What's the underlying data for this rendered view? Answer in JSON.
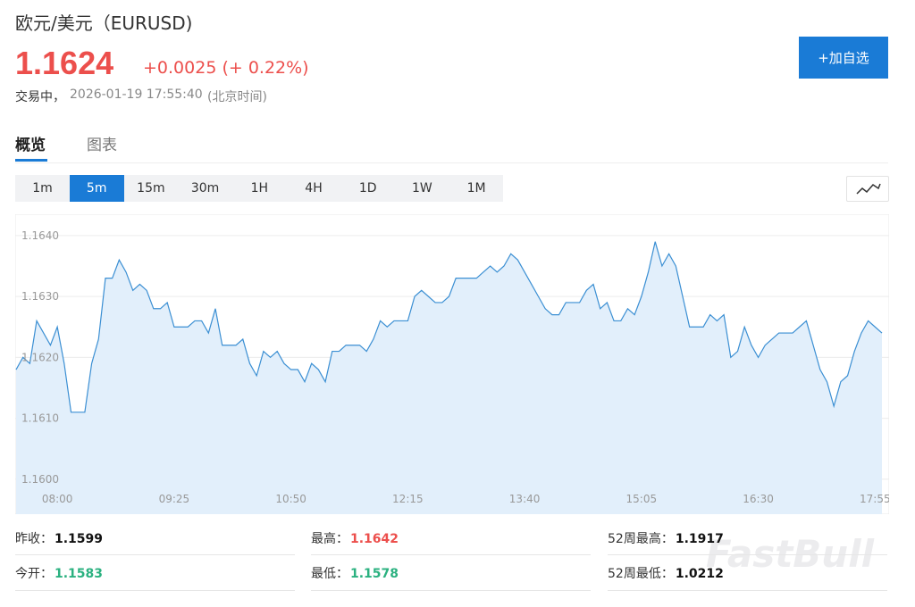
{
  "header": {
    "title": "欧元/美元（EURUSD)",
    "price": "1.1624",
    "change": "+0.0025 (+ 0.22%)",
    "status": "交易中，",
    "time": "2026-01-19 17:55:40",
    "timezone": "(北京时间)"
  },
  "button": "+加自选",
  "tabs": {
    "items": [
      "概览",
      "图表"
    ],
    "active": 0
  },
  "intervals": {
    "items": [
      "1m",
      "5m",
      "15m",
      "30m",
      "1H",
      "4H",
      "1D",
      "1W",
      "1M"
    ],
    "active": 1
  },
  "chart_data": {
    "type": "area",
    "color": "#3b8fd3",
    "fill": "#e2effb",
    "grid": true,
    "categories": [
      null,
      null,
      null,
      null,
      null,
      null,
      "08:00",
      null,
      null,
      null,
      null,
      null,
      null,
      null,
      null,
      null,
      null,
      null,
      null,
      null,
      null,
      null,
      null,
      "09:25",
      null,
      null,
      null,
      null,
      null,
      null,
      null,
      null,
      null,
      null,
      null,
      null,
      null,
      null,
      null,
      null,
      "10:50",
      null,
      null,
      null,
      null,
      null,
      null,
      null,
      null,
      null,
      null,
      null,
      null,
      null,
      null,
      null,
      null,
      "12:15",
      null,
      null,
      null,
      null,
      null,
      null,
      null,
      null,
      null,
      null,
      null,
      null,
      null,
      null,
      null,
      null,
      "13:40",
      null,
      null,
      null,
      null,
      null,
      null,
      null,
      null,
      null,
      null,
      null,
      null,
      null,
      null,
      null,
      null,
      "15:05",
      null,
      null,
      null,
      null,
      null,
      null,
      null,
      null,
      null,
      null,
      null,
      null,
      null,
      null,
      null,
      null,
      "16:30",
      null,
      null,
      null,
      null,
      null,
      null,
      null,
      null,
      null,
      null,
      null,
      null,
      null,
      null,
      null,
      null,
      "17:55",
      null
    ],
    "values": [
      1.1618,
      1.162,
      1.1619,
      1.1626,
      1.1624,
      1.1622,
      1.1625,
      1.1619,
      1.1611,
      1.1611,
      1.1611,
      1.1619,
      1.1623,
      1.1633,
      1.1633,
      1.1636,
      1.1634,
      1.1631,
      1.1632,
      1.1631,
      1.1628,
      1.1628,
      1.1629,
      1.1625,
      1.1625,
      1.1625,
      1.1626,
      1.1626,
      1.1624,
      1.1628,
      1.1622,
      1.1622,
      1.1622,
      1.1623,
      1.1619,
      1.1617,
      1.1621,
      1.162,
      1.1621,
      1.1619,
      1.1618,
      1.1618,
      1.1616,
      1.1619,
      1.1618,
      1.1616,
      1.1621,
      1.1621,
      1.1622,
      1.1622,
      1.1622,
      1.1621,
      1.1623,
      1.1626,
      1.1625,
      1.1626,
      1.1626,
      1.1626,
      1.163,
      1.1631,
      1.163,
      1.1629,
      1.1629,
      1.163,
      1.1633,
      1.1633,
      1.1633,
      1.1633,
      1.1634,
      1.1635,
      1.1634,
      1.1635,
      1.1637,
      1.1636,
      1.1634,
      1.1632,
      1.163,
      1.1628,
      1.1627,
      1.1627,
      1.1629,
      1.1629,
      1.1629,
      1.1631,
      1.1632,
      1.1628,
      1.1629,
      1.1626,
      1.1626,
      1.1628,
      1.1627,
      1.163,
      1.1634,
      1.1639,
      1.1635,
      1.1637,
      1.1635,
      1.163,
      1.1625,
      1.1625,
      1.1625,
      1.1627,
      1.1626,
      1.1627,
      1.162,
      1.1621,
      1.1625,
      1.1622,
      1.162,
      1.1622,
      1.1623,
      1.1624,
      1.1624,
      1.1624,
      1.1625,
      1.1626,
      1.1622,
      1.1618,
      1.1616,
      1.1612,
      1.1616,
      1.1617,
      1.1621,
      1.1624,
      1.1626,
      1.1625,
      1.1624
    ],
    "ylim": [
      1.1595,
      1.16435
    ],
    "yticks": [
      {
        "value": 1.16,
        "label": "1.1600"
      },
      {
        "value": 1.161,
        "label": "1.1610"
      },
      {
        "value": 1.162,
        "label": "1.1620"
      },
      {
        "value": 1.163,
        "label": "1.1630"
      },
      {
        "value": 1.164,
        "label": "1.1640"
      }
    ]
  },
  "stats": [
    {
      "label": "昨收：",
      "value": "1.1599"
    },
    {
      "label": "最高：",
      "value": "1.1642"
    },
    {
      "label": "52周最高：",
      "value": "1.1917"
    },
    {
      "label": "今开：",
      "value": "1.1583"
    },
    {
      "label": "最低：",
      "value": "1.1578"
    },
    {
      "label": "52周最低：",
      "value": "1.0212"
    }
  ],
  "watermark": "FastBull"
}
